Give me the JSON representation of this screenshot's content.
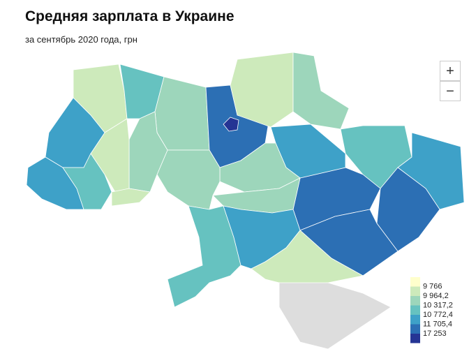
{
  "header": {
    "title": "Средняя зарплата в Украине",
    "subtitle": "за сентябрь 2020 года, грн"
  },
  "controls": {
    "zoom_in": "+",
    "zoom_out": "−"
  },
  "legend": {
    "labels": [
      "9 766",
      "9 964,2",
      "10 317,2",
      "10 772,4",
      "11 705,4",
      "17 253"
    ],
    "colors": [
      "#ffffcc",
      "#cdeabb",
      "#9dd6bb",
      "#66c2c0",
      "#3ea1c8",
      "#2c6fb4",
      "#253494"
    ]
  }
}
